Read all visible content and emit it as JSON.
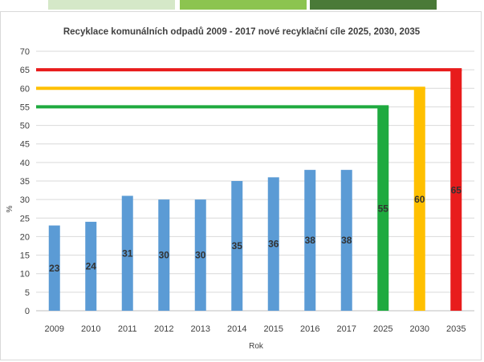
{
  "header_strips": [
    {
      "color": "#d5e8c8"
    },
    {
      "color": "#8cc450"
    },
    {
      "color": "#4a7a38"
    }
  ],
  "chart_data": {
    "type": "bar",
    "title": "Recyklace komunálních odpadů 2009 - 2017 nové recyklační cíle 2025, 2030, 2035",
    "xlabel": "Rok",
    "ylabel": "%",
    "ylim": [
      0,
      70
    ],
    "ytick_step": 5,
    "grid": true,
    "categories": [
      "2009",
      "2010",
      "2011",
      "2012",
      "2013",
      "2014",
      "2015",
      "2016",
      "2017",
      "2025",
      "2030",
      "2035"
    ],
    "values": [
      23,
      24,
      31,
      30,
      30,
      35,
      36,
      38,
      38,
      55,
      60,
      65
    ],
    "bar_colors": [
      "#5b9bd5",
      "#5b9bd5",
      "#5b9bd5",
      "#5b9bd5",
      "#5b9bd5",
      "#5b9bd5",
      "#5b9bd5",
      "#5b9bd5",
      "#5b9bd5",
      "#1eaa3f",
      "#ffc000",
      "#e81c1c"
    ],
    "data_labels": [
      "23",
      "24",
      "31",
      "30",
      "30",
      "35",
      "36",
      "38",
      "38",
      "55",
      "60",
      "65"
    ],
    "target_lines": [
      {
        "value": 55,
        "category": "2025",
        "color": "#1eaa3f"
      },
      {
        "value": 60,
        "category": "2030",
        "color": "#ffc000"
      },
      {
        "value": 65,
        "category": "2035",
        "color": "#e81c1c"
      }
    ]
  }
}
